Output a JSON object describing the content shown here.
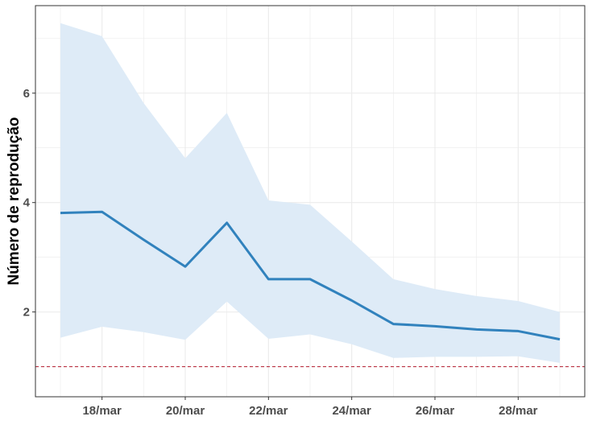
{
  "chart_data": {
    "type": "line",
    "title": "",
    "xlabel": "",
    "ylabel": "Número de reprodução",
    "x": [
      "17/mar",
      "18/mar",
      "19/mar",
      "20/mar",
      "21/mar",
      "22/mar",
      "23/mar",
      "24/mar",
      "25/mar",
      "26/mar",
      "27/mar",
      "28/mar",
      "29/mar"
    ],
    "x_tick_labels": [
      "18/mar",
      "20/mar",
      "22/mar",
      "24/mar",
      "26/mar",
      "28/mar"
    ],
    "y_ticks": [
      2,
      4,
      6
    ],
    "xlim": [
      "16.4/mar",
      "29.6/mar"
    ],
    "ylim": [
      0.45,
      7.6
    ],
    "series": [
      {
        "name": "",
        "values": [
          3.81,
          3.83,
          3.32,
          2.83,
          3.63,
          2.6,
          2.6,
          2.21,
          1.78,
          1.74,
          1.68,
          1.65,
          1.5
        ],
        "color": "#3182bd"
      }
    ],
    "band": {
      "lower": [
        1.53,
        1.73,
        1.63,
        1.49,
        2.19,
        1.51,
        1.59,
        1.41,
        1.16,
        1.18,
        1.18,
        1.19,
        1.07
      ],
      "upper": [
        7.28,
        7.04,
        5.82,
        4.81,
        5.64,
        4.04,
        3.96,
        3.29,
        2.6,
        2.42,
        2.29,
        2.2,
        2.0
      ],
      "color": "#deebf7"
    },
    "reference_line": {
      "y": 1.0,
      "color": "#b2182b",
      "style": "dashed"
    },
    "grid": true,
    "legend": "none"
  }
}
